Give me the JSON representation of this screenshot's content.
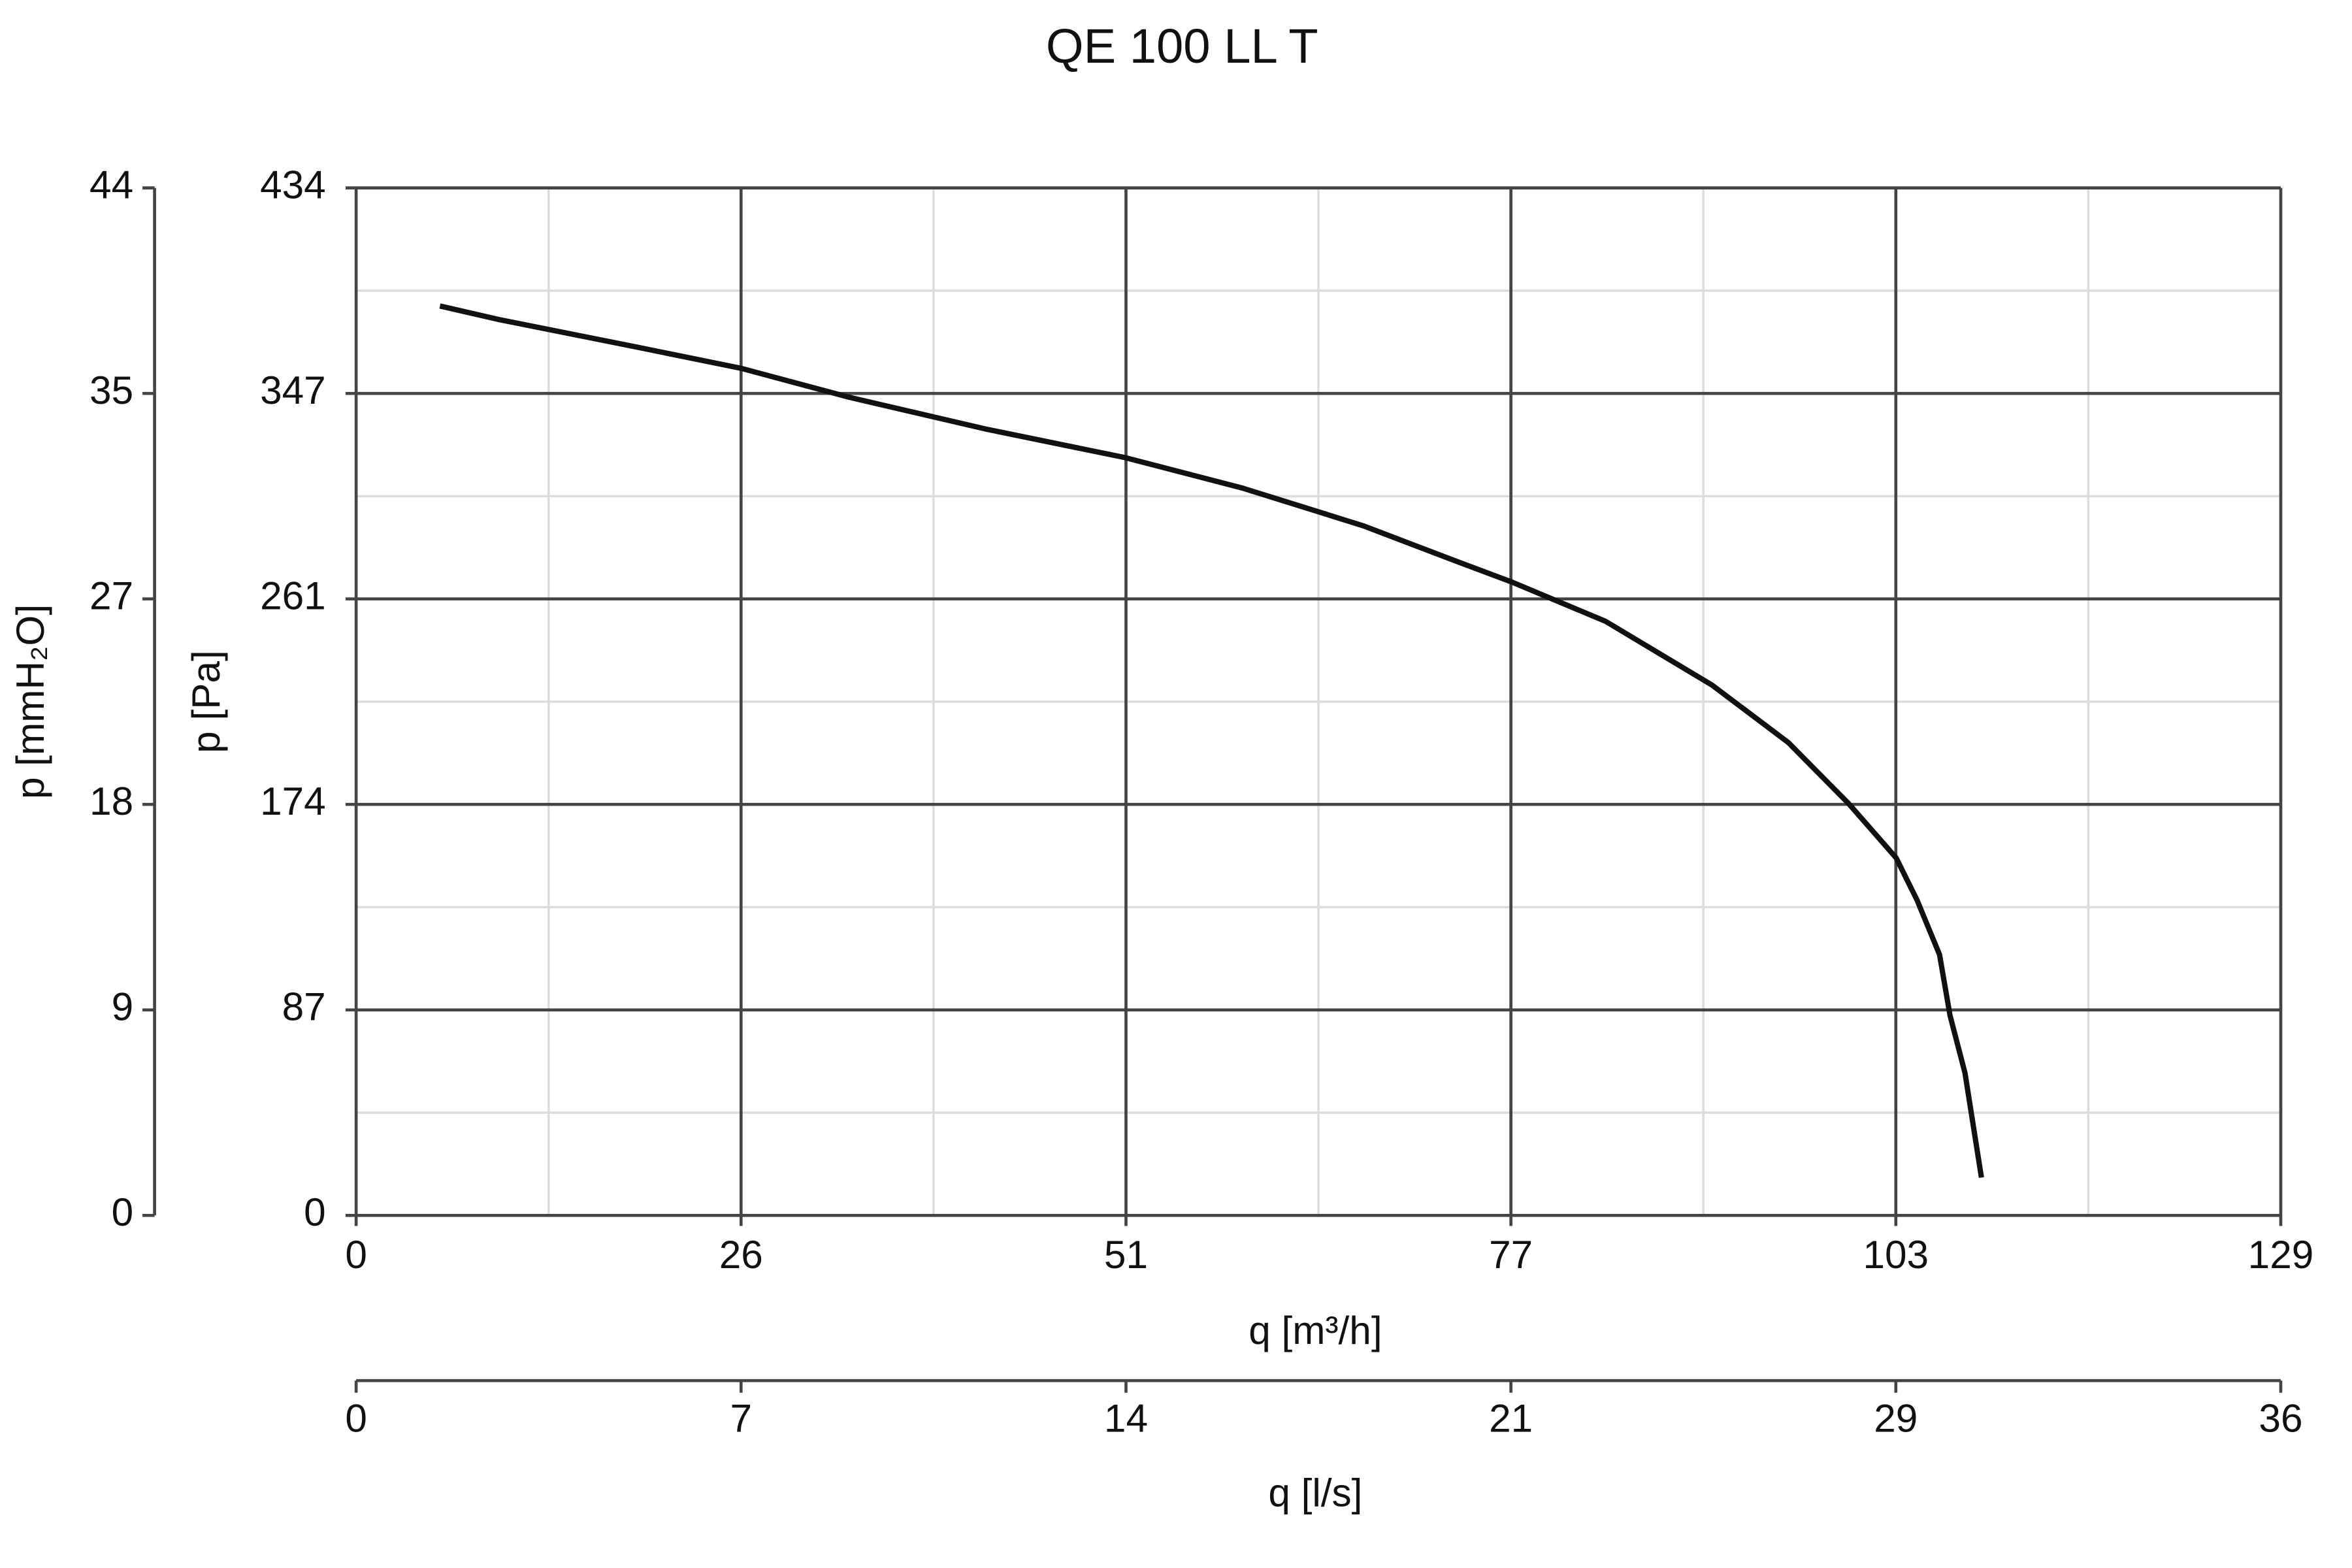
{
  "chart_data": {
    "type": "line",
    "title": "QE 100 LL T",
    "xlabel": "q [m³/h]",
    "ylabel": "p [Pa]",
    "y2label": "p [mmH₂O]",
    "x2label": "q [l/s]",
    "xlim": [
      0,
      128.6
    ],
    "xticks": [
      0,
      {
        "value": 25.72,
        "label": "26"
      },
      {
        "value": 51.44,
        "label": "51"
      },
      {
        "value": 77.16,
        "label": "77"
      },
      {
        "value": 102.88,
        "label": "103"
      },
      {
        "value": 128.6,
        "label": "129"
      }
    ],
    "ylim": [
      0,
      434.2
    ],
    "yticks": [
      0,
      {
        "value": 86.84,
        "label": "87"
      },
      {
        "value": 173.68,
        "label": "174"
      },
      {
        "value": 260.52,
        "label": "261"
      },
      {
        "value": 347.36,
        "label": "347"
      },
      {
        "value": 434.2,
        "label": "434"
      }
    ],
    "y2lim": [
      0,
      44.28
    ],
    "y2ticks": [
      0,
      {
        "value": 8.856,
        "label": "9"
      },
      {
        "value": 17.712,
        "label": "18"
      },
      {
        "value": 26.568,
        "label": "27"
      },
      {
        "value": 35.424,
        "label": "35"
      },
      {
        "value": 44.28,
        "label": "44"
      }
    ],
    "x2lim": [
      0,
      35.72
    ],
    "x2ticks": [
      0,
      {
        "value": 7.144,
        "label": "7"
      },
      {
        "value": 14.288,
        "label": "14"
      },
      {
        "value": 21.432,
        "label": "21"
      },
      {
        "value": 28.576,
        "label": "29"
      },
      {
        "value": 35.72,
        "label": "36"
      }
    ],
    "grid": true,
    "minor_grid": true,
    "color": "#111111",
    "x": [
      5.6,
      9.6,
      18.7,
      25.7,
      32.9,
      42.0,
      51.4,
      59.2,
      67.3,
      73.4,
      77.2,
      83.5,
      90.6,
      95.7,
      99.7,
      102.9,
      104.3,
      105.8,
      106.5,
      107.5,
      108.6
    ],
    "values": [
      384.3,
      378.5,
      367.0,
      358.0,
      345.8,
      332.4,
      320.2,
      307.4,
      291.4,
      276.7,
      267.7,
      251.0,
      224.1,
      199.8,
      174.2,
      151.1,
      133.2,
      110.2,
      84.5,
      60.2,
      16.0
    ]
  }
}
